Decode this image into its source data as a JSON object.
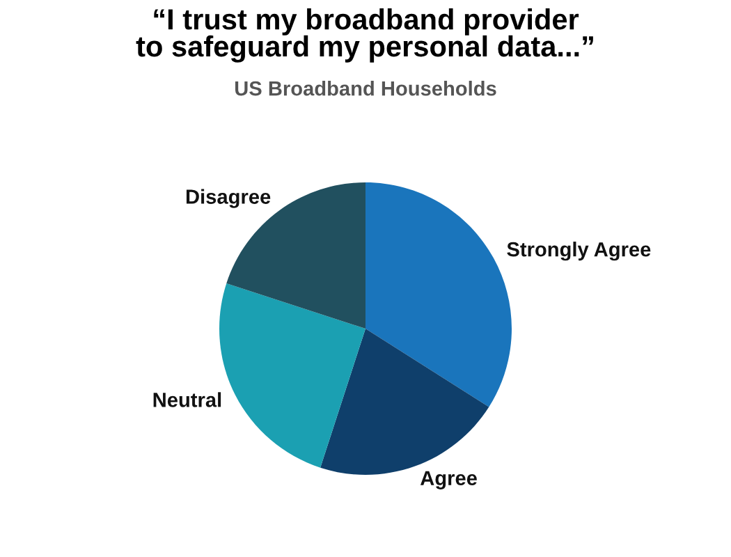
{
  "chart_data": {
    "type": "pie",
    "title": "“I trust my broadband provider\nto safeguard my personal data...”",
    "subtitle": "US Broadband Households",
    "categories": [
      "Strongly Agree",
      "Agree",
      "Neutral",
      "Disagree"
    ],
    "values": [
      34,
      21,
      25,
      20
    ],
    "colors": [
      "#1a75bc",
      "#0f3f6b",
      "#1ba0b2",
      "#21505f"
    ]
  }
}
